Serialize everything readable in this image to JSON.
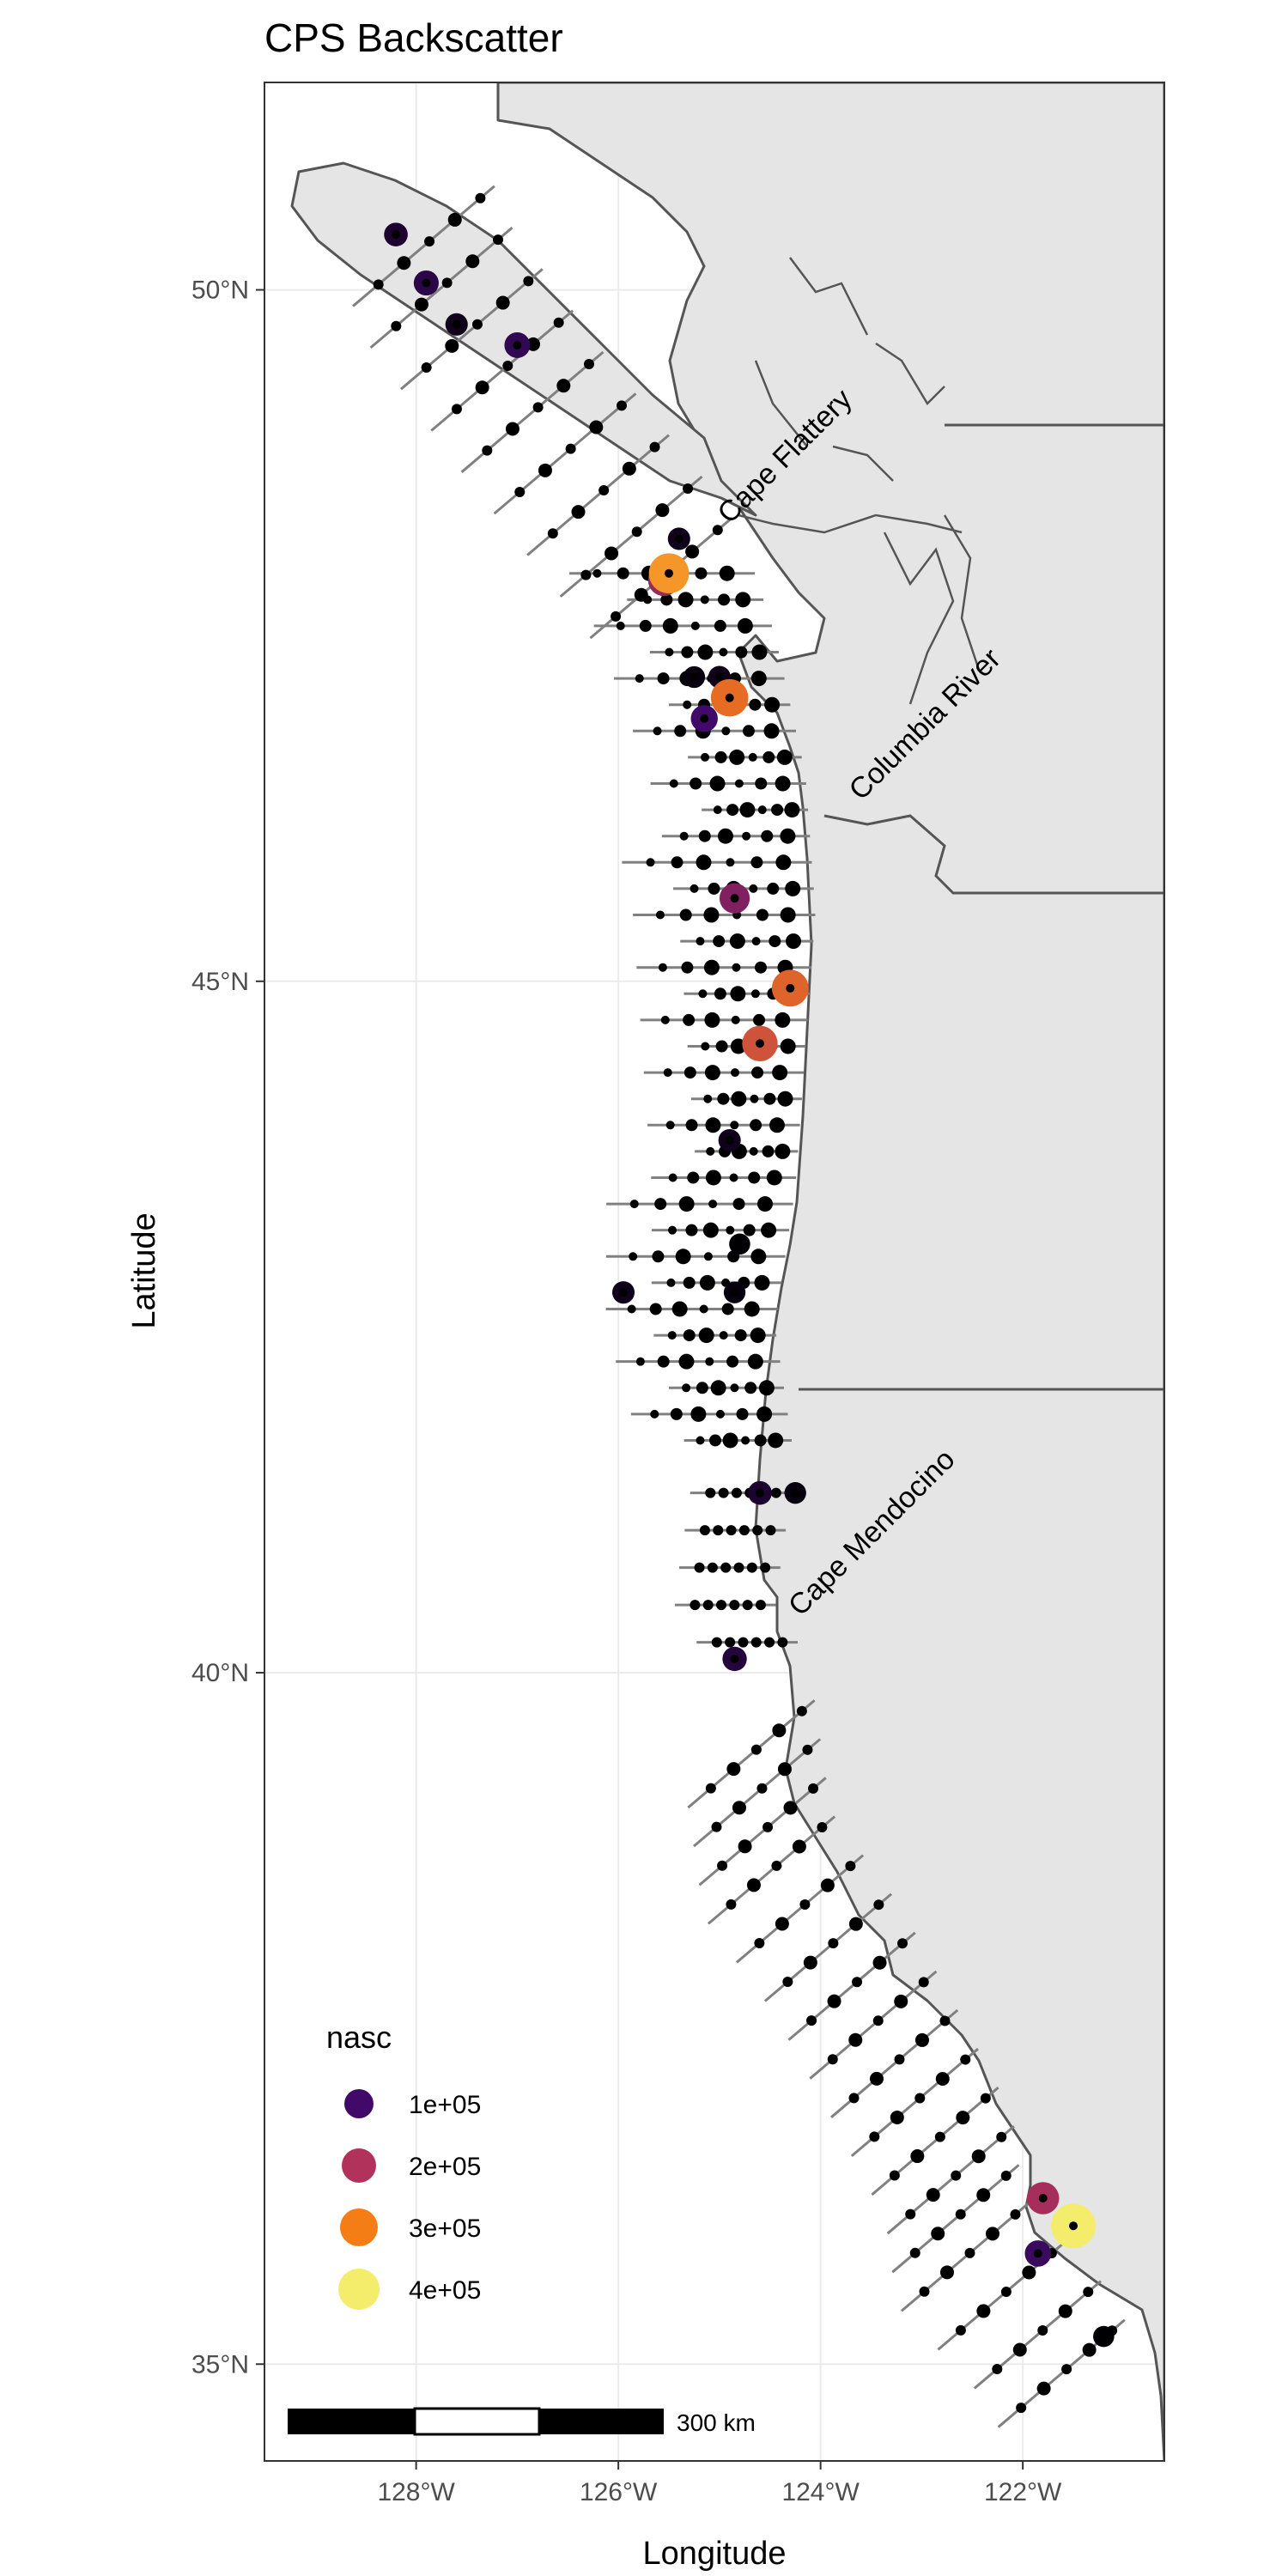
{
  "title": "CPS Backscatter",
  "x_axis": {
    "label": "Longitude",
    "ticks": [
      {
        "value": -128,
        "label": "128°W"
      },
      {
        "value": -126,
        "label": "126°W"
      },
      {
        "value": -124,
        "label": "124°W"
      },
      {
        "value": -122,
        "label": "122°W"
      }
    ],
    "range": [
      -129.5,
      -120.6
    ]
  },
  "y_axis": {
    "label": "Latitude",
    "ticks": [
      {
        "value": 50,
        "label": "50°N"
      },
      {
        "value": 45,
        "label": "45°N"
      },
      {
        "value": 40,
        "label": "40°N"
      },
      {
        "value": 35,
        "label": "35°N"
      }
    ],
    "range": [
      34.3,
      51.5
    ]
  },
  "places": [
    {
      "name": "Cape Flattery",
      "lon": -124.9,
      "lat": 48.3
    },
    {
      "name": "Columbia River",
      "lon": -123.6,
      "lat": 46.3
    },
    {
      "name": "Cape Mendocino",
      "lon": -124.2,
      "lat": 40.4
    }
  ],
  "legend": {
    "title": "nasc",
    "entries": [
      {
        "label": "1e+05",
        "color": "#420a68"
      },
      {
        "label": "2e+05",
        "color": "#b1325a"
      },
      {
        "label": "3e+05",
        "color": "#f57d15"
      },
      {
        "label": "4e+05",
        "color": "#f4ed6c"
      }
    ]
  },
  "scale_bar": {
    "label": "300 km"
  },
  "colors": {
    "land": "#e5e5e5",
    "coast": "#555555",
    "transect": "#808080",
    "point": "#000000"
  },
  "chart_data": {
    "type": "scatter",
    "title": "CPS Backscatter",
    "xlabel": "Longitude",
    "ylabel": "Latitude",
    "xlim": [
      -129.5,
      -120.6
    ],
    "ylim": [
      34.3,
      51.5
    ],
    "large_points": [
      {
        "lon": -128.2,
        "lat": 50.4,
        "nasc": 100000
      },
      {
        "lon": -127.9,
        "lat": 50.05,
        "nasc": 120000
      },
      {
        "lon": -127.6,
        "lat": 49.75,
        "nasc": 80000
      },
      {
        "lon": -127.0,
        "lat": 49.6,
        "nasc": 130000
      },
      {
        "lon": -125.4,
        "lat": 48.2,
        "nasc": 80000
      },
      {
        "lon": -125.5,
        "lat": 47.95,
        "nasc": 350000
      },
      {
        "lon": -125.55,
        "lat": 47.9,
        "nasc": 220000
      },
      {
        "lon": -125.0,
        "lat": 47.2,
        "nasc": 80000
      },
      {
        "lon": -124.9,
        "lat": 47.05,
        "nasc": 310000
      },
      {
        "lon": -125.15,
        "lat": 46.9,
        "nasc": 150000
      },
      {
        "lon": -125.25,
        "lat": 47.2,
        "nasc": 70000
      },
      {
        "lon": -124.85,
        "lat": 45.6,
        "nasc": 200000
      },
      {
        "lon": -124.3,
        "lat": 44.95,
        "nasc": 300000
      },
      {
        "lon": -124.6,
        "lat": 44.55,
        "nasc": 280000
      },
      {
        "lon": -124.9,
        "lat": 43.85,
        "nasc": 80000
      },
      {
        "lon": -124.8,
        "lat": 43.1,
        "nasc": 60000
      },
      {
        "lon": -125.95,
        "lat": 42.75,
        "nasc": 80000
      },
      {
        "lon": -124.85,
        "lat": 42.75,
        "nasc": 70000
      },
      {
        "lon": -124.6,
        "lat": 41.3,
        "nasc": 100000
      },
      {
        "lon": -124.25,
        "lat": 41.3,
        "nasc": 70000
      },
      {
        "lon": -124.85,
        "lat": 40.1,
        "nasc": 110000
      },
      {
        "lon": -121.8,
        "lat": 36.2,
        "nasc": 230000
      },
      {
        "lon": -121.5,
        "lat": 36.0,
        "nasc": 420000
      },
      {
        "lon": -121.85,
        "lat": 35.8,
        "nasc": 140000
      },
      {
        "lon": -121.2,
        "lat": 35.2,
        "nasc": 60000
      }
    ]
  }
}
